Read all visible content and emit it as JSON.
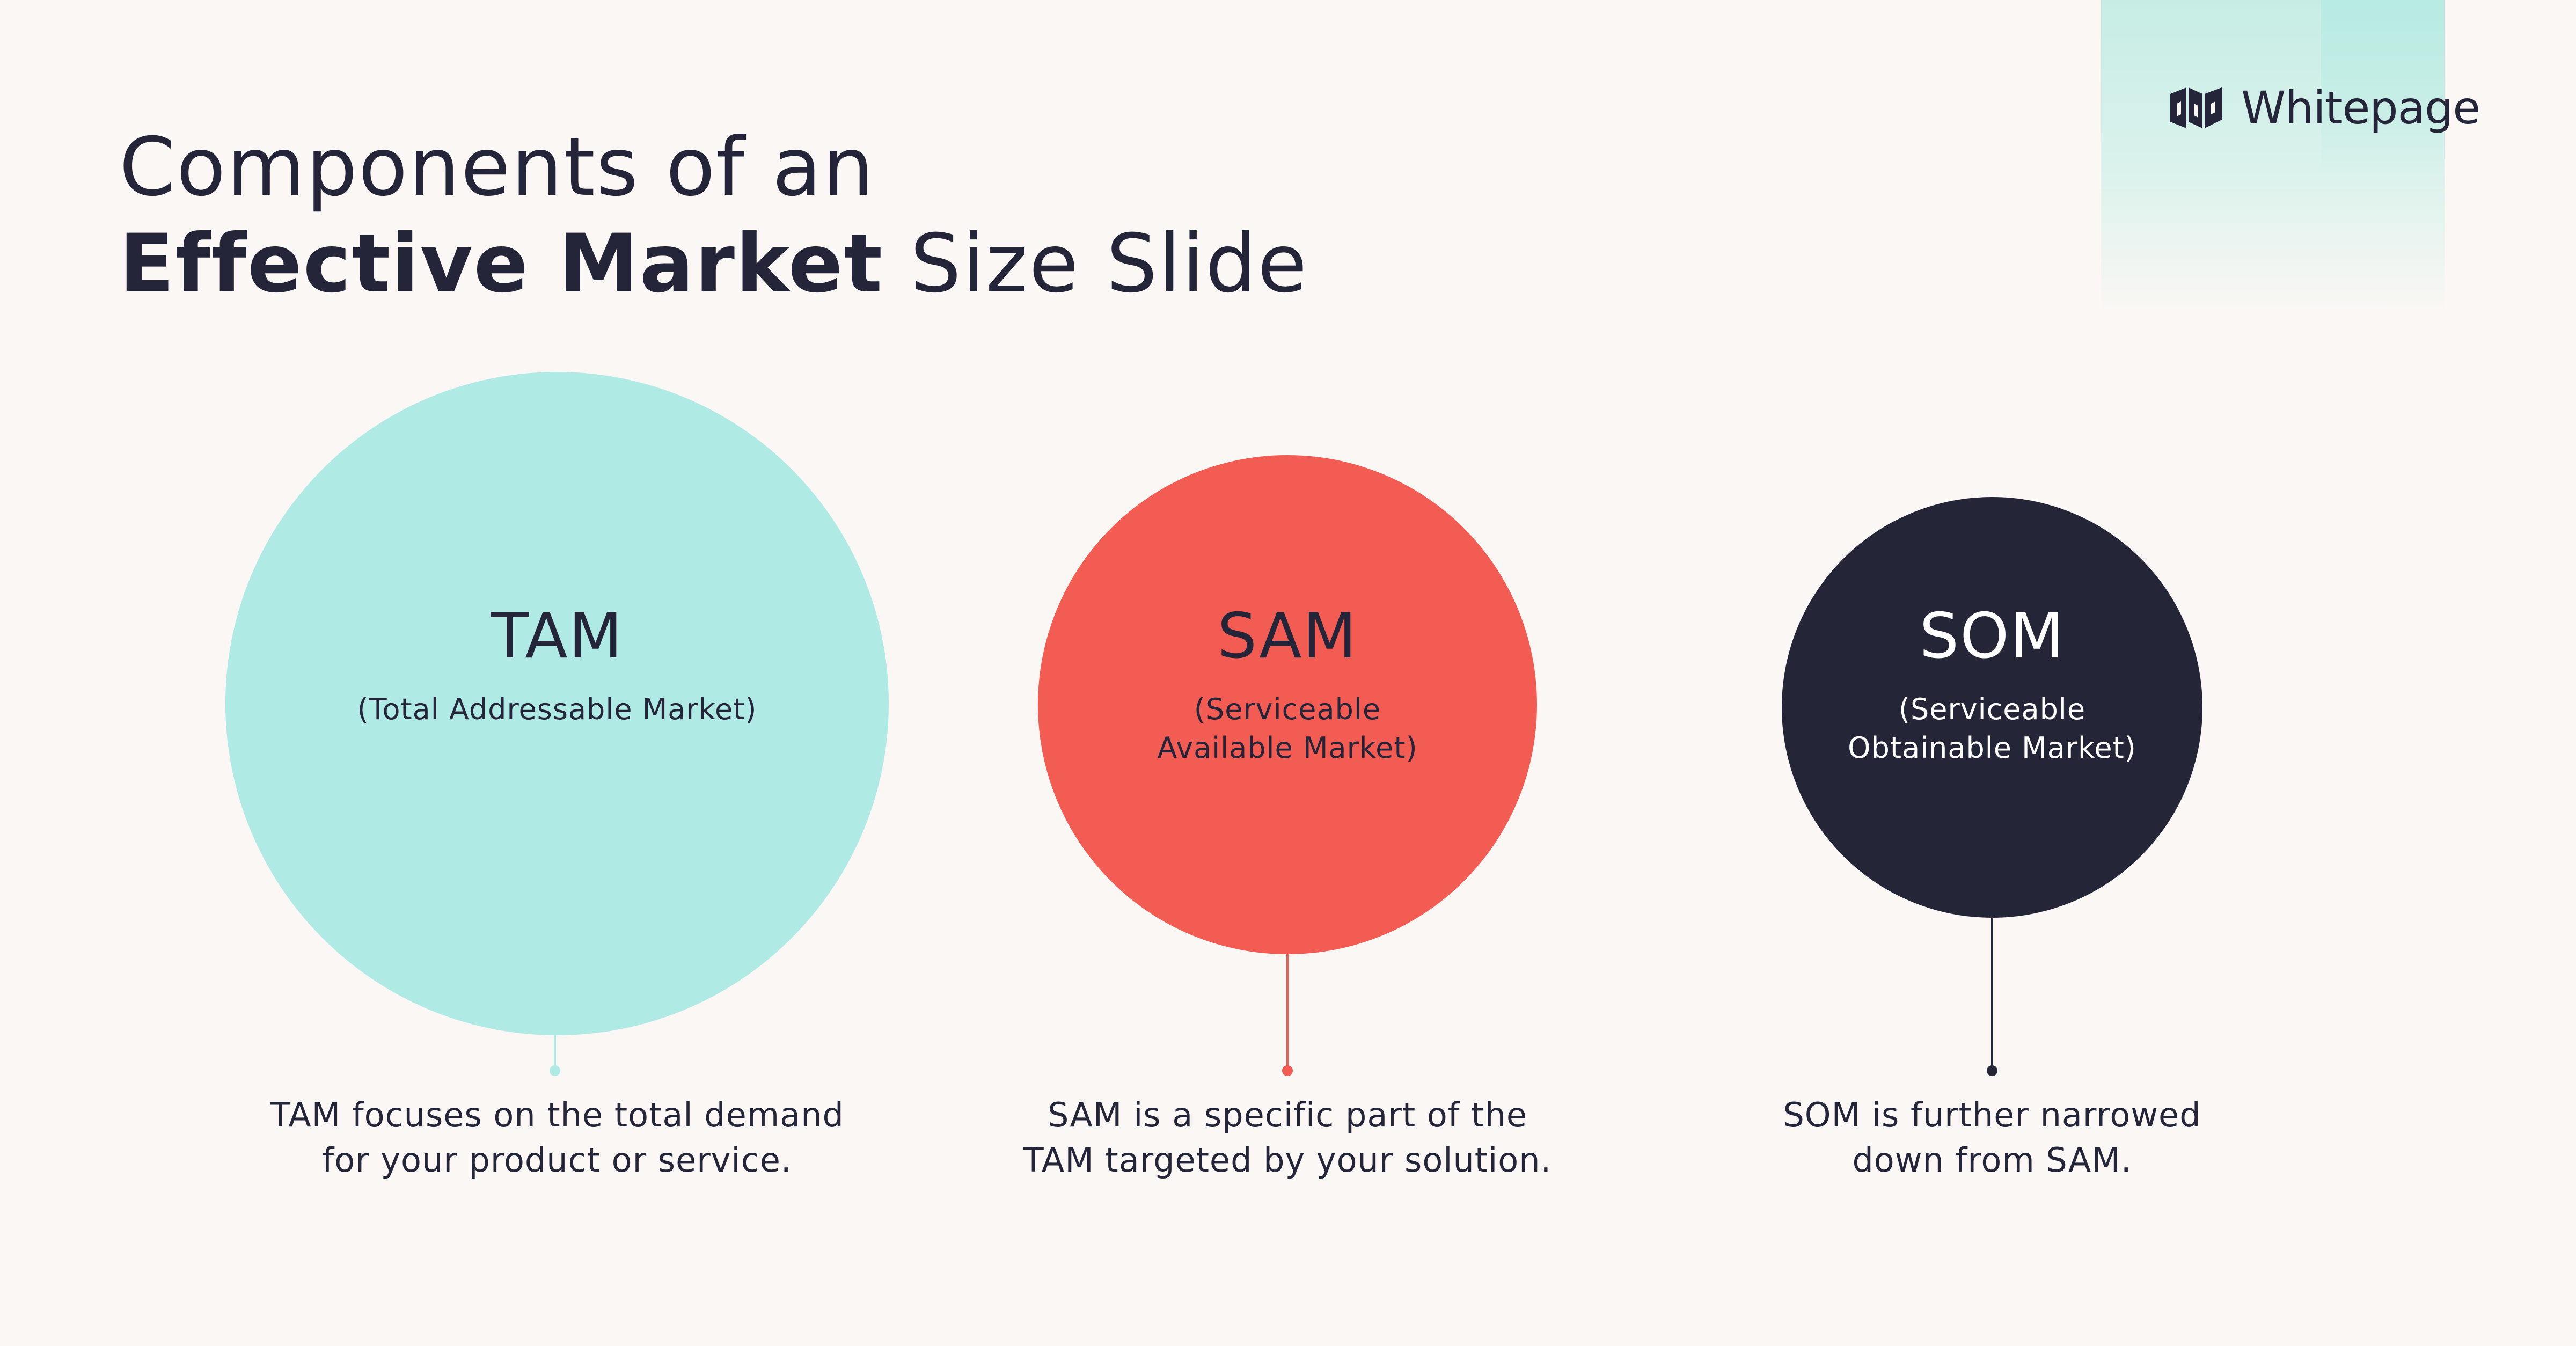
{
  "brand": {
    "name": "Whitepage",
    "logo_icon": "whitepage-logo-mark"
  },
  "title": {
    "line1": "Components of an",
    "line2_bold": "Effective Market",
    "line2_rest": "Size Slide"
  },
  "colors": {
    "tam": "#afeae5",
    "sam": "#f25c52",
    "som": "#252538",
    "background": "#faf7f4",
    "text": "#25253a"
  },
  "markets": [
    {
      "abbr": "TAM",
      "full_line1": "(Total Addressable Market)",
      "full_line2": "",
      "desc_line1": "TAM focuses on the total demand",
      "desc_line2": "for your product or service."
    },
    {
      "abbr": "SAM",
      "full_line1": "(Serviceable",
      "full_line2": "Available Market)",
      "desc_line1": "SAM is a specific part of the",
      "desc_line2": "TAM targeted by your solution."
    },
    {
      "abbr": "SOM",
      "full_line1": "(Serviceable",
      "full_line2": "Obtainable Market)",
      "desc_line1": "SOM is further narrowed",
      "desc_line2": "down from SAM."
    }
  ]
}
